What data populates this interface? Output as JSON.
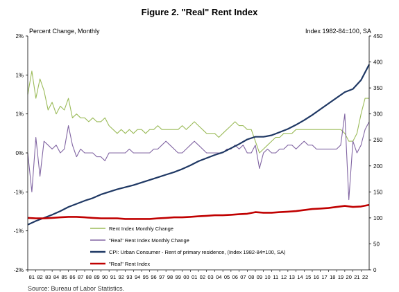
{
  "chart_data": {
    "type": "line",
    "title": "Figure 2. \"Real\" Rent Index",
    "ylabel_left": "Percent Change, Monthly",
    "ylabel_right": "Index 1982-84=100, SA",
    "source": "Source: Bureau of Labor Statistics.",
    "y_left_ticks": [
      "2%",
      "1%",
      "1%",
      "0%",
      "-1%",
      "-1%",
      "-2%"
    ],
    "y_left_values": [
      1.5,
      1.0,
      0.5,
      0.0,
      -0.5,
      -1.0,
      -1.5
    ],
    "ylim_left": [
      -1.5,
      1.5
    ],
    "y_right_ticks": [
      450,
      400,
      350,
      300,
      250,
      200,
      150,
      100,
      50,
      0
    ],
    "ylim_right": [
      0,
      450
    ],
    "x_ticks": [
      "81",
      "82",
      "83",
      "84",
      "85",
      "86",
      "87",
      "88",
      "89",
      "90",
      "91",
      "92",
      "93",
      "94",
      "95",
      "96",
      "97",
      "98",
      "99",
      "00",
      "01",
      "02",
      "03",
      "04",
      "05",
      "06",
      "07",
      "08",
      "09",
      "10",
      "11",
      "12",
      "13",
      "14",
      "15",
      "16",
      "17",
      "18",
      "19",
      "20",
      "21",
      "22"
    ],
    "xlim": [
      1981.0,
      2023.0
    ],
    "legend": [
      {
        "name": "Rent Index Monthly Change",
        "color": "#9BBB59"
      },
      {
        "name": "\"Real\" Rent Index Monthly Change",
        "color": "#8064A2"
      },
      {
        "name": "CPI: Urban Consumer - Rent of primary residence, (Index 1982-84=100, SA)",
        "color": "#1F3864"
      },
      {
        "name": "\"Real\" Rent Index",
        "color": "#C00000"
      }
    ],
    "series": [
      {
        "name": "Rent Index Monthly Change",
        "axis": "left",
        "color": "#9BBB59",
        "x": [
          1981.0,
          1981.5,
          1982.0,
          1982.5,
          1983.0,
          1983.5,
          1984.0,
          1984.5,
          1985.0,
          1985.5,
          1986.0,
          1986.5,
          1987.0,
          1987.5,
          1988.0,
          1988.5,
          1989.0,
          1989.5,
          1990.0,
          1990.5,
          1991.0,
          1991.5,
          1992.0,
          1992.5,
          1993.0,
          1993.5,
          1994.0,
          1994.5,
          1995.0,
          1995.5,
          1996.0,
          1996.5,
          1997.0,
          1997.5,
          1998.0,
          1998.5,
          1999.0,
          1999.5,
          2000.0,
          2000.5,
          2001.0,
          2001.5,
          2002.0,
          2002.5,
          2003.0,
          2003.5,
          2004.0,
          2004.5,
          2005.0,
          2005.5,
          2006.0,
          2006.5,
          2007.0,
          2007.5,
          2008.0,
          2008.5,
          2009.0,
          2009.5,
          2010.0,
          2010.5,
          2011.0,
          2011.5,
          2012.0,
          2012.5,
          2013.0,
          2013.5,
          2014.0,
          2014.5,
          2015.0,
          2015.5,
          2016.0,
          2016.5,
          2017.0,
          2017.5,
          2018.0,
          2018.5,
          2019.0,
          2019.5,
          2020.0,
          2020.5,
          2021.0,
          2021.5,
          2022.0,
          2022.5,
          2023.0
        ],
        "values": [
          0.75,
          1.05,
          0.7,
          0.95,
          0.8,
          0.55,
          0.65,
          0.5,
          0.6,
          0.55,
          0.7,
          0.45,
          0.5,
          0.45,
          0.45,
          0.4,
          0.45,
          0.4,
          0.4,
          0.45,
          0.35,
          0.3,
          0.25,
          0.3,
          0.25,
          0.3,
          0.25,
          0.3,
          0.3,
          0.25,
          0.3,
          0.3,
          0.35,
          0.3,
          0.3,
          0.3,
          0.3,
          0.3,
          0.35,
          0.3,
          0.35,
          0.4,
          0.35,
          0.3,
          0.25,
          0.25,
          0.25,
          0.2,
          0.25,
          0.3,
          0.35,
          0.4,
          0.35,
          0.35,
          0.3,
          0.3,
          0.15,
          0.0,
          0.05,
          0.1,
          0.15,
          0.2,
          0.2,
          0.25,
          0.25,
          0.25,
          0.3,
          0.3,
          0.3,
          0.3,
          0.3,
          0.3,
          0.3,
          0.3,
          0.3,
          0.3,
          0.3,
          0.3,
          0.25,
          0.15,
          0.15,
          0.25,
          0.5,
          0.7,
          0.7
        ]
      },
      {
        "name": "\"Real\" Rent Index Monthly Change",
        "axis": "left",
        "color": "#8064A2",
        "x": [
          1981.0,
          1981.5,
          1982.0,
          1982.5,
          1983.0,
          1983.5,
          1984.0,
          1984.5,
          1985.0,
          1985.5,
          1986.0,
          1986.5,
          1987.0,
          1987.5,
          1988.0,
          1988.5,
          1989.0,
          1989.5,
          1990.0,
          1990.5,
          1991.0,
          1991.5,
          1992.0,
          1992.5,
          1993.0,
          1993.5,
          1994.0,
          1994.5,
          1995.0,
          1995.5,
          1996.0,
          1996.5,
          1997.0,
          1997.5,
          1998.0,
          1998.5,
          1999.0,
          1999.5,
          2000.0,
          2000.5,
          2001.0,
          2001.5,
          2002.0,
          2002.5,
          2003.0,
          2003.5,
          2004.0,
          2004.5,
          2005.0,
          2005.5,
          2006.0,
          2006.5,
          2007.0,
          2007.5,
          2008.0,
          2008.5,
          2009.0,
          2009.5,
          2010.0,
          2010.5,
          2011.0,
          2011.5,
          2012.0,
          2012.5,
          2013.0,
          2013.5,
          2014.0,
          2014.5,
          2015.0,
          2015.5,
          2016.0,
          2016.5,
          2017.0,
          2017.5,
          2018.0,
          2018.5,
          2019.0,
          2019.5,
          2020.0,
          2020.5,
          2021.0,
          2021.5,
          2022.0,
          2022.5,
          2023.0
        ],
        "values": [
          0.0,
          -0.5,
          0.2,
          -0.3,
          0.15,
          0.1,
          0.05,
          0.1,
          0.0,
          0.05,
          0.35,
          0.1,
          -0.05,
          0.05,
          0.0,
          0.0,
          0.0,
          -0.05,
          -0.05,
          -0.1,
          0.0,
          0.0,
          0.0,
          0.0,
          0.0,
          0.05,
          0.0,
          0.0,
          0.0,
          0.0,
          0.0,
          0.05,
          0.05,
          0.1,
          0.15,
          0.1,
          0.05,
          0.0,
          0.0,
          0.05,
          0.1,
          0.15,
          0.1,
          0.05,
          0.0,
          0.0,
          0.0,
          0.0,
          0.0,
          0.05,
          0.05,
          0.1,
          0.05,
          0.1,
          0.0,
          0.0,
          0.1,
          -0.2,
          0.0,
          0.05,
          0.0,
          0.0,
          0.05,
          0.05,
          0.1,
          0.1,
          0.05,
          0.1,
          0.15,
          0.1,
          0.1,
          0.05,
          0.05,
          0.05,
          0.05,
          0.05,
          0.05,
          0.1,
          0.5,
          -0.6,
          0.15,
          0.0,
          0.1,
          0.3,
          0.4
        ]
      },
      {
        "name": "CPI: Urban Consumer - Rent of primary residence, (Index 1982-84=100, SA)",
        "axis": "right",
        "color": "#1F3864",
        "x": [
          1981.0,
          1982.0,
          1983.0,
          1984.0,
          1985.0,
          1986.0,
          1987.0,
          1988.0,
          1989.0,
          1990.0,
          1991.0,
          1992.0,
          1993.0,
          1994.0,
          1995.0,
          1996.0,
          1997.0,
          1998.0,
          1999.0,
          2000.0,
          2001.0,
          2002.0,
          2003.0,
          2004.0,
          2005.0,
          2006.0,
          2007.0,
          2008.0,
          2009.0,
          2010.0,
          2011.0,
          2012.0,
          2013.0,
          2014.0,
          2015.0,
          2016.0,
          2017.0,
          2018.0,
          2019.0,
          2020.0,
          2021.0,
          2022.0,
          2023.0
        ],
        "values": [
          87,
          94,
          100,
          106,
          113,
          121,
          127,
          133,
          138,
          145,
          150,
          155,
          159,
          163,
          168,
          173,
          178,
          183,
          188,
          194,
          201,
          209,
          215,
          221,
          226,
          234,
          242,
          251,
          256,
          256,
          259,
          265,
          271,
          279,
          288,
          298,
          309,
          320,
          331,
          342,
          348,
          365,
          395
        ]
      },
      {
        "name": "\"Real\" Rent Index",
        "axis": "right",
        "color": "#C00000",
        "x": [
          1981.0,
          1982.0,
          1983.0,
          1984.0,
          1985.0,
          1986.0,
          1987.0,
          1988.0,
          1989.0,
          1990.0,
          1991.0,
          1992.0,
          1993.0,
          1994.0,
          1995.0,
          1996.0,
          1997.0,
          1998.0,
          1999.0,
          2000.0,
          2001.0,
          2002.0,
          2003.0,
          2004.0,
          2005.0,
          2006.0,
          2007.0,
          2008.0,
          2009.0,
          2010.0,
          2011.0,
          2012.0,
          2013.0,
          2014.0,
          2015.0,
          2016.0,
          2017.0,
          2018.0,
          2019.0,
          2020.0,
          2021.0,
          2022.0,
          2023.0
        ],
        "values": [
          100,
          99,
          99,
          100,
          101,
          102,
          102,
          101,
          100,
          99,
          99,
          99,
          98,
          98,
          98,
          98,
          99,
          100,
          101,
          101,
          102,
          103,
          104,
          105,
          105,
          106,
          107,
          108,
          111,
          110,
          110,
          111,
          112,
          113,
          115,
          117,
          118,
          119,
          121,
          123,
          121,
          122,
          125
        ]
      }
    ]
  }
}
